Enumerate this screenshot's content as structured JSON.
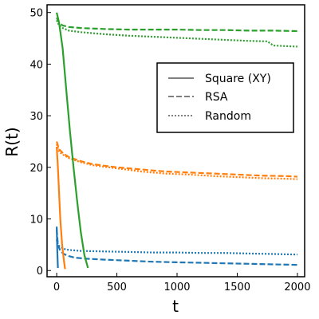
{
  "chart_data": {
    "type": "line",
    "xlabel": "t",
    "ylabel": "R(t)",
    "xlim": [
      -80,
      2060
    ],
    "ylim": [
      -1.2,
      51.5
    ],
    "xticks": [
      0,
      500,
      1000,
      1500,
      2000
    ],
    "yticks": [
      0,
      10,
      20,
      30,
      40,
      50
    ],
    "grid": false,
    "legend_position": "upper-right (inset)",
    "legend": [
      {
        "label": "Square (XY)",
        "dash": "solid"
      },
      {
        "label": "RSA",
        "dash": "dashed"
      },
      {
        "label": "Random",
        "dash": "dotted"
      }
    ],
    "colors": {
      "blue": "#1f77b4",
      "orange": "#ff7f0e",
      "green": "#2ca02c"
    },
    "series": [
      {
        "color": "blue",
        "style": "solid",
        "x": [
          0,
          5,
          10
        ],
        "y": [
          8.5,
          4.0,
          0.5
        ]
      },
      {
        "color": "blue",
        "style": "dashed",
        "x": [
          0,
          10,
          30,
          60,
          100,
          150,
          250,
          400,
          600,
          800,
          1000,
          1200,
          1400,
          1600,
          1800,
          2000
        ],
        "y": [
          8.0,
          5.0,
          3.8,
          3.2,
          2.8,
          2.5,
          2.3,
          2.1,
          1.9,
          1.7,
          1.6,
          1.5,
          1.4,
          1.3,
          1.2,
          1.1
        ]
      },
      {
        "color": "blue",
        "style": "dotted",
        "x": [
          0,
          10,
          30,
          60,
          100,
          200,
          400,
          600,
          800,
          1000,
          1200,
          1400,
          1600,
          1800,
          2000
        ],
        "y": [
          6.0,
          5.0,
          4.6,
          4.2,
          4.0,
          3.8,
          3.7,
          3.6,
          3.5,
          3.5,
          3.4,
          3.4,
          3.3,
          3.2,
          3.1
        ]
      },
      {
        "color": "orange",
        "style": "solid",
        "x": [
          0,
          10,
          20,
          30,
          45,
          60,
          70
        ],
        "y": [
          24.0,
          20.0,
          15.0,
          10.0,
          5.0,
          2.0,
          0.3
        ]
      },
      {
        "color": "orange",
        "style": "dashed",
        "x": [
          0,
          20,
          50,
          100,
          200,
          300,
          500,
          700,
          900,
          1100,
          1300,
          1500,
          1700,
          1900,
          2000
        ],
        "y": [
          25.0,
          23.5,
          22.8,
          22.0,
          21.2,
          20.6,
          20.0,
          19.6,
          19.2,
          19.0,
          18.8,
          18.6,
          18.4,
          18.3,
          18.2
        ]
      },
      {
        "color": "orange",
        "style": "dotted",
        "x": [
          0,
          20,
          50,
          100,
          200,
          300,
          500,
          700,
          900,
          1100,
          1300,
          1500,
          1700,
          1900,
          2000
        ],
        "y": [
          24.5,
          23.0,
          22.5,
          21.8,
          21.0,
          20.4,
          19.8,
          19.2,
          18.8,
          18.6,
          18.3,
          18.1,
          17.9,
          17.8,
          17.7
        ]
      },
      {
        "color": "green",
        "style": "solid",
        "x": [
          0,
          20,
          50,
          80,
          110,
          140,
          170,
          200,
          230,
          260
        ],
        "y": [
          50.0,
          48.0,
          43.0,
          35.0,
          27.0,
          20.0,
          13.5,
          7.5,
          3.0,
          0.5
        ]
      },
      {
        "color": "green",
        "style": "dashed",
        "x": [
          0,
          20,
          50,
          100,
          200,
          400,
          600,
          800,
          1000,
          1200,
          1400,
          1600,
          1800,
          2000
        ],
        "y": [
          49.0,
          48.0,
          47.5,
          47.2,
          47.0,
          46.8,
          46.7,
          46.7,
          46.7,
          46.6,
          46.6,
          46.5,
          46.5,
          46.4
        ]
      },
      {
        "color": "green",
        "style": "dotted",
        "x": [
          0,
          20,
          50,
          100,
          200,
          400,
          600,
          800,
          1000,
          1200,
          1400,
          1600,
          1750,
          1800,
          1900,
          2000
        ],
        "y": [
          48.5,
          47.5,
          47.0,
          46.5,
          46.2,
          45.8,
          45.5,
          45.3,
          45.1,
          44.9,
          44.7,
          44.5,
          44.4,
          43.6,
          43.5,
          43.4
        ]
      }
    ]
  }
}
